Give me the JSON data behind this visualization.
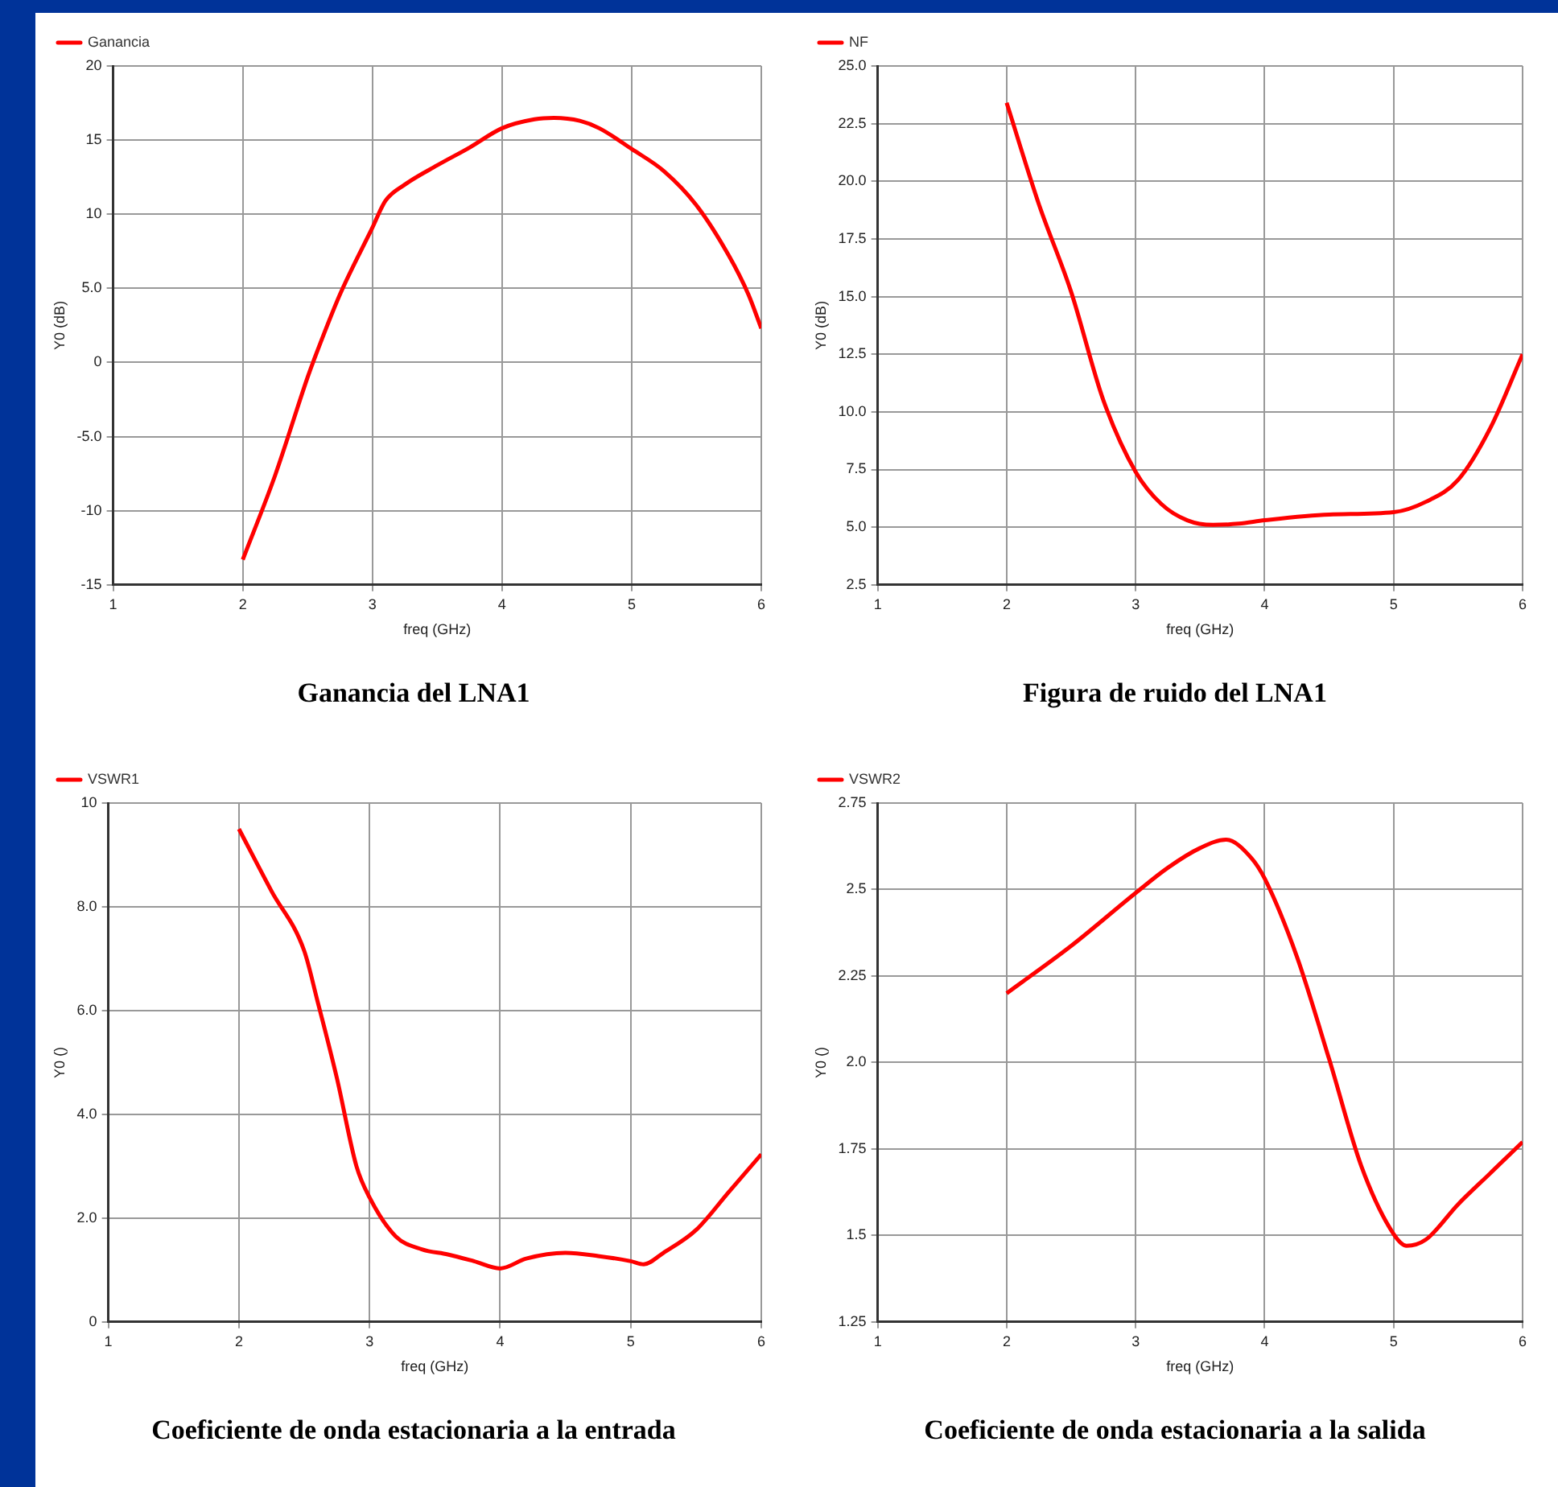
{
  "chart_data": [
    {
      "type": "line",
      "title": "Ganancia del LNA1",
      "xlabel": "freq (GHz)",
      "ylabel": "Y0 (dB)",
      "xlim": [
        1,
        6
      ],
      "xticks": [
        1,
        2,
        3,
        4,
        5,
        6
      ],
      "ylim": [
        -15,
        20
      ],
      "yticks": [
        -15,
        -10,
        {
          "value": -5,
          "label": "-5.0"
        },
        0,
        {
          "value": 5,
          "label": "5.0"
        },
        10,
        15,
        20
      ],
      "grid": true,
      "legend": "top left",
      "x": [
        2,
        2.25,
        2.5,
        2.55,
        2.75,
        3,
        3.1,
        3.25,
        3.5,
        3.75,
        4,
        4.25,
        4.4,
        4.6,
        4.75,
        5,
        5.25,
        5.5,
        5.75,
        5.9,
        6
      ],
      "series": [
        {
          "name": "Ganancia",
          "color": "#ff0000",
          "values": [
            -13.3,
            -7.6,
            -1.0,
            0.2,
            4.6,
            9.1,
            10.9,
            12.0,
            13.3,
            14.5,
            15.8,
            16.4,
            16.5,
            16.3,
            15.8,
            14.4,
            12.9,
            10.6,
            7.2,
            4.6,
            2.3
          ]
        }
      ]
    },
    {
      "type": "line",
      "title": "Figura de ruido del LNA1",
      "xlabel": "freq (GHz)",
      "ylabel": "Y0 (dB)",
      "xlim": [
        1,
        6
      ],
      "xticks": [
        1,
        2,
        3,
        4,
        5,
        6
      ],
      "ylim": [
        2.5,
        25
      ],
      "yticks": [
        {
          "value": 2.5,
          "label": "2.5"
        },
        {
          "value": 5,
          "label": "5.0"
        },
        {
          "value": 7.5,
          "label": "7.5"
        },
        {
          "value": 10,
          "label": "10.0"
        },
        {
          "value": 12.5,
          "label": "12.5"
        },
        {
          "value": 15,
          "label": "15.0"
        },
        {
          "value": 17.5,
          "label": "17.5"
        },
        {
          "value": 20,
          "label": "20.0"
        },
        {
          "value": 22.5,
          "label": "22.5"
        },
        {
          "value": 25,
          "label": "25.0"
        }
      ],
      "grid": true,
      "legend": "top left",
      "x": [
        2,
        2.25,
        2.5,
        2.75,
        3,
        3.2,
        3.4,
        3.6,
        3.8,
        4,
        4.5,
        5,
        5.25,
        5.5,
        5.75,
        6
      ],
      "series": [
        {
          "name": "NF",
          "color": "#ff0000",
          "values": [
            23.4,
            19.0,
            15.2,
            10.5,
            7.4,
            6.0,
            5.3,
            5.1,
            5.15,
            5.3,
            5.55,
            5.65,
            6.1,
            7.05,
            9.3,
            12.5
          ]
        }
      ]
    },
    {
      "type": "line",
      "title": "Coeficiente de onda estacionaria a la entrada",
      "xlabel": "freq (GHz)",
      "ylabel": "Y0 ()",
      "xlim": [
        1,
        6
      ],
      "xticks": [
        1,
        2,
        3,
        4,
        5,
        6
      ],
      "ylim": [
        0,
        10
      ],
      "yticks": [
        0,
        {
          "value": 2,
          "label": "2.0"
        },
        {
          "value": 4,
          "label": "4.0"
        },
        {
          "value": 6,
          "label": "6.0"
        },
        {
          "value": 8,
          "label": "8.0"
        },
        10
      ],
      "grid": true,
      "legend": "top left",
      "x": [
        2,
        2.25,
        2.5,
        2.6,
        2.75,
        2.9,
        3,
        3.2,
        3.4,
        3.6,
        3.8,
        4,
        4.2,
        4.5,
        4.75,
        5,
        5.1,
        5.25,
        5.5,
        5.75,
        6
      ],
      "series": [
        {
          "name": "VSWR1",
          "color": "#ff0000",
          "values": [
            9.5,
            8.3,
            7.15,
            6.2,
            4.7,
            3.0,
            2.4,
            1.65,
            1.4,
            1.3,
            1.17,
            1.03,
            1.22,
            1.33,
            1.27,
            1.17,
            1.11,
            1.33,
            1.77,
            2.5,
            3.23
          ]
        }
      ]
    },
    {
      "type": "line",
      "title": "Coeficiente de onda estacionaria a la salida",
      "xlabel": "freq (GHz)",
      "ylabel": "Y0 ()",
      "xlim": [
        1,
        6
      ],
      "xticks": [
        1,
        2,
        3,
        4,
        5,
        6
      ],
      "ylim": [
        1.25,
        2.75
      ],
      "yticks": [
        1.25,
        1.5,
        1.75,
        {
          "value": 2,
          "label": "2.0"
        },
        2.25,
        2.5,
        2.75
      ],
      "grid": true,
      "legend": "top left",
      "x": [
        2,
        2.5,
        3,
        3.25,
        3.5,
        3.7,
        3.9,
        4,
        4.25,
        4.5,
        4.75,
        5,
        5.1,
        5.25,
        5.5,
        5.75,
        6
      ],
      "series": [
        {
          "name": "VSWR2",
          "color": "#ff0000",
          "values": [
            2.2,
            2.337,
            2.49,
            2.563,
            2.62,
            2.644,
            2.59,
            2.532,
            2.306,
            2.01,
            1.7,
            1.504,
            1.47,
            1.488,
            1.59,
            1.68,
            1.77
          ]
        }
      ]
    }
  ]
}
